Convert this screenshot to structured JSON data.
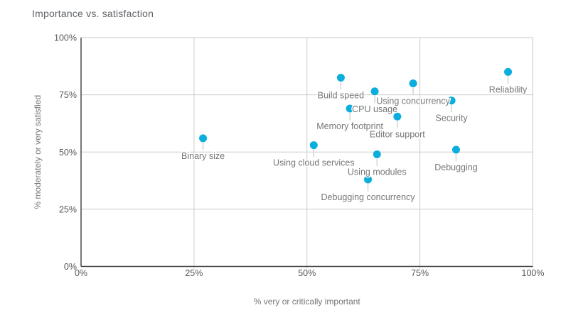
{
  "title": "Importance vs. satisfaction",
  "chart_data": {
    "type": "scatter",
    "title": "Importance vs. satisfaction",
    "xlabel": "% very or critically important",
    "ylabel": "% moderately or very satisfied",
    "xlim": [
      0,
      100
    ],
    "ylim": [
      0,
      100
    ],
    "grid": true,
    "legend": false,
    "x_tick_values": [
      0,
      25,
      50,
      75,
      100
    ],
    "x_tick_labels": [
      "0%",
      "25%",
      "50%",
      "75%",
      "100%"
    ],
    "y_tick_values": [
      0,
      25,
      50,
      75,
      100
    ],
    "y_tick_labels": [
      "0%",
      "25%",
      "50%",
      "75%",
      "100%"
    ],
    "points": [
      {
        "label": "Binary size",
        "x": 27,
        "y": 56
      },
      {
        "label": "Using cloud services",
        "x": 51.5,
        "y": 53
      },
      {
        "label": "Build speed",
        "x": 57.5,
        "y": 82.5
      },
      {
        "label": "Memory footprint",
        "x": 59.5,
        "y": 69
      },
      {
        "label": "Debugging concurrency",
        "x": 63.5,
        "y": 38
      },
      {
        "label": "CPU usage",
        "x": 65,
        "y": 76.5
      },
      {
        "label": "Using modules",
        "x": 65.5,
        "y": 49
      },
      {
        "label": "Editor support",
        "x": 70,
        "y": 65.5
      },
      {
        "label": "Using concurrency",
        "x": 73.5,
        "y": 80
      },
      {
        "label": "Security",
        "x": 82,
        "y": 72.5
      },
      {
        "label": "Debugging",
        "x": 83,
        "y": 51
      },
      {
        "label": "Reliability",
        "x": 94.5,
        "y": 85
      }
    ]
  },
  "colors": {
    "point": "#0baedc",
    "grid": "#cccccc",
    "axis_dark": "#3c3c3c",
    "frame_light": "#c9c9c9",
    "leader": "#d2d2d2",
    "title_text": "#5f6368",
    "tick_text": "#55575a",
    "point_label_text": "#757779",
    "axis_title_text": "#757575"
  }
}
